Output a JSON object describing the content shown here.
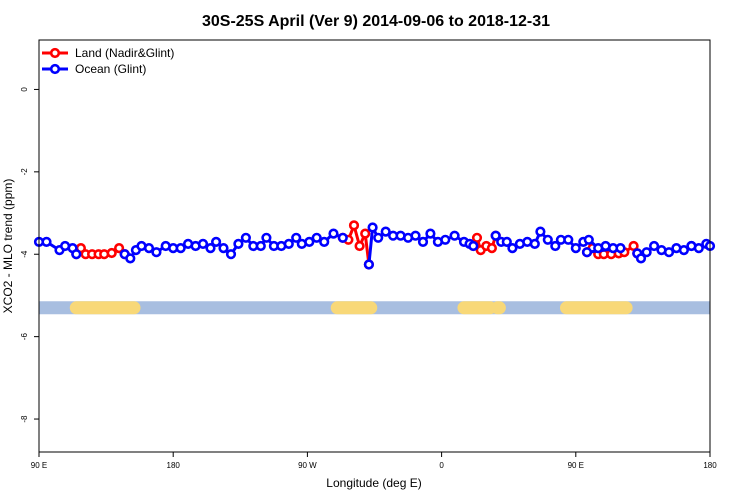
{
  "chart_data": {
    "type": "line",
    "title": "30S-25S April (Ver 9)   2014-09-06 to 2018-12-31",
    "xlabel": "Longitude (deg E)",
    "ylabel": "XCO2 - MLO trend (ppm)",
    "xlim": [
      90,
      450
    ],
    "ylim": [
      -8.8,
      1.2
    ],
    "x_ticks": [
      90,
      162,
      234,
      306,
      378,
      450
    ],
    "x_tick_labels": [
      "90 E",
      "180",
      "90 W",
      "0",
      "90 E",
      "180"
    ],
    "y_ticks": [
      0,
      -2,
      -4,
      -6,
      -8
    ],
    "y_tick_labels": [
      "0",
      "-2",
      "-4",
      "-6",
      "-8"
    ],
    "legend": {
      "position": "top-left",
      "entries": [
        {
          "label": "Land (Nadir&Glint)",
          "color": "#ff0000"
        },
        {
          "label": "Ocean (Glint)",
          "color": "#0000ff"
        }
      ]
    },
    "land_sea_band": {
      "y": -5.3,
      "ocean_color": "#a8bee0",
      "land_color": "#f8d878",
      "land_spans": [
        [
          110,
          141
        ],
        [
          250,
          268
        ],
        [
          318,
          332
        ],
        [
          336,
          337
        ],
        [
          373,
          405
        ]
      ]
    },
    "series": [
      {
        "name": "Land (Nadir&Glint)",
        "color": "#ff0000",
        "segments": [
          [
            [
              110,
              -4.0
            ],
            [
              112.5,
              -3.85
            ],
            [
              115,
              -4.0
            ],
            [
              118.5,
              -4.0
            ],
            [
              122,
              -4.0
            ],
            [
              125,
              -4.0
            ],
            [
              129,
              -3.97
            ],
            [
              133,
              -3.85
            ],
            [
              136,
              -4.0
            ]
          ],
          [
            [
              253,
              -3.6
            ],
            [
              256,
              -3.65
            ],
            [
              259,
              -3.3
            ],
            [
              262,
              -3.8
            ],
            [
              265,
              -3.5
            ],
            [
              267,
              -4.25
            ]
          ],
          [
            [
              323,
              -3.8
            ],
            [
              325,
              -3.6
            ],
            [
              327,
              -3.9
            ],
            [
              330,
              -3.8
            ],
            [
              333,
              -3.85
            ],
            [
              335,
              -3.55
            ]
          ],
          [
            [
              384,
              -3.95
            ],
            [
              387,
              -3.85
            ],
            [
              390,
              -4.0
            ],
            [
              393,
              -4.0
            ],
            [
              397,
              -4.0
            ],
            [
              401,
              -3.98
            ],
            [
              404,
              -3.95
            ],
            [
              409,
              -3.8
            ],
            [
              411,
              -3.98
            ]
          ]
        ]
      },
      {
        "name": "Ocean (Glint)",
        "color": "#0000ff",
        "segments": [
          [
            [
              90,
              -3.7
            ],
            [
              94,
              -3.7
            ],
            [
              101,
              -3.9
            ],
            [
              104,
              -3.8
            ],
            [
              108,
              -3.85
            ],
            [
              110,
              -4.0
            ]
          ],
          [
            [
              136,
              -4.0
            ],
            [
              139,
              -4.1
            ],
            [
              142,
              -3.9
            ],
            [
              145,
              -3.8
            ],
            [
              149,
              -3.85
            ],
            [
              153,
              -3.95
            ],
            [
              158,
              -3.8
            ],
            [
              162,
              -3.85
            ],
            [
              166,
              -3.85
            ],
            [
              170,
              -3.75
            ],
            [
              174,
              -3.8
            ],
            [
              178,
              -3.75
            ],
            [
              182,
              -3.85
            ],
            [
              185,
              -3.7
            ],
            [
              189,
              -3.85
            ],
            [
              193,
              -4.0
            ],
            [
              197,
              -3.75
            ],
            [
              201,
              -3.6
            ],
            [
              205,
              -3.8
            ],
            [
              209,
              -3.8
            ],
            [
              212,
              -3.6
            ],
            [
              216,
              -3.8
            ],
            [
              220,
              -3.8
            ],
            [
              224,
              -3.75
            ],
            [
              228,
              -3.6
            ],
            [
              231,
              -3.75
            ],
            [
              235,
              -3.7
            ],
            [
              239,
              -3.6
            ],
            [
              243,
              -3.7
            ],
            [
              248,
              -3.5
            ],
            [
              253,
              -3.6
            ]
          ],
          [
            [
              267,
              -4.25
            ],
            [
              269,
              -3.35
            ],
            [
              272,
              -3.6
            ],
            [
              276,
              -3.45
            ],
            [
              280,
              -3.55
            ],
            [
              284,
              -3.55
            ],
            [
              288,
              -3.6
            ],
            [
              292,
              -3.55
            ],
            [
              296,
              -3.7
            ],
            [
              300,
              -3.5
            ],
            [
              304,
              -3.7
            ],
            [
              308,
              -3.65
            ],
            [
              313,
              -3.55
            ],
            [
              318,
              -3.7
            ],
            [
              321,
              -3.75
            ],
            [
              323,
              -3.8
            ]
          ],
          [
            [
              335,
              -3.55
            ],
            [
              338,
              -3.7
            ],
            [
              341,
              -3.7
            ],
            [
              344,
              -3.85
            ],
            [
              348,
              -3.75
            ],
            [
              352,
              -3.7
            ],
            [
              356,
              -3.75
            ],
            [
              359,
              -3.45
            ],
            [
              363,
              -3.65
            ],
            [
              367,
              -3.8
            ],
            [
              370,
              -3.65
            ],
            [
              374,
              -3.65
            ],
            [
              378,
              -3.85
            ],
            [
              382,
              -3.7
            ],
            [
              385,
              -3.65
            ],
            [
              390,
              -3.85
            ],
            [
              394,
              -3.8
            ],
            [
              398,
              -3.85
            ],
            [
              402,
              -3.85
            ],
            [
              384,
              -3.95
            ]
          ],
          [
            [
              411,
              -3.98
            ],
            [
              413,
              -4.1
            ],
            [
              416,
              -3.95
            ],
            [
              420,
              -3.8
            ],
            [
              424,
              -3.9
            ],
            [
              428,
              -3.95
            ],
            [
              432,
              -3.85
            ],
            [
              436,
              -3.9
            ],
            [
              440,
              -3.8
            ]
          ],
          [
            [
              440,
              -3.8
            ],
            [
              444,
              -3.85
            ],
            [
              448,
              -3.75
            ],
            [
              450,
              -3.8
            ]
          ]
        ]
      }
    ]
  }
}
